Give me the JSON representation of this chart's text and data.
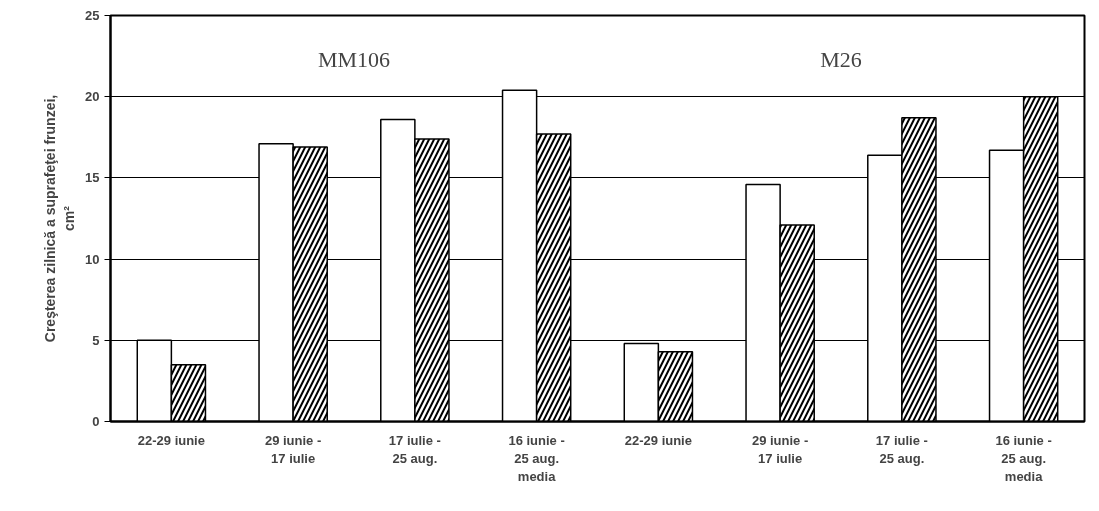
{
  "chart_data": {
    "type": "bar",
    "ylabel": "Creşterea zilnică a suprafeţei frunzei,\ncm²",
    "categories": [
      "22-29 iunie",
      "29 iunie -\n17 iulie",
      "17 iulie -\n25 aug.",
      "16 iunie -\n25 aug.\nmedia",
      "22-29 iunie",
      "29 iunie -\n17 iulie",
      "17 iulie -\n25 aug.",
      "16 iunie -\n25 aug.\nmedia"
    ],
    "series": [
      {
        "color": "#ffffff",
        "values": [
          5.0,
          17.1,
          18.6,
          20.4,
          4.8,
          14.6,
          16.4,
          16.7
        ]
      },
      {
        "color": "#ffffff",
        "values": [
          3.5,
          16.9,
          17.4,
          17.7,
          4.3,
          12.1,
          18.7,
          20.0
        ]
      }
    ],
    "annotations": [
      "MM106",
      "M26"
    ],
    "ylim": [
      0,
      25
    ],
    "yticks": [
      0,
      5,
      10,
      15,
      20,
      25
    ],
    "grid": "y"
  }
}
